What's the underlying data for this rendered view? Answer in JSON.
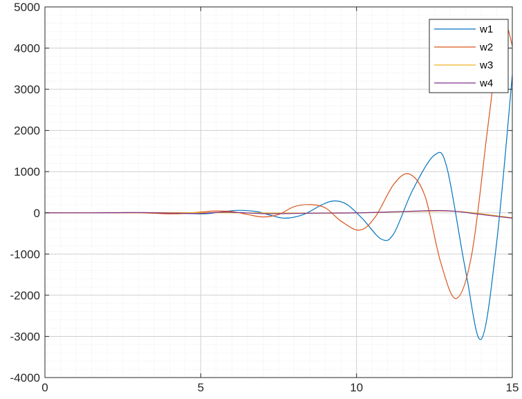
{
  "chart_data": {
    "type": "line",
    "title": "",
    "xlabel": "",
    "ylabel": "",
    "xlim": [
      0,
      15
    ],
    "ylim": [
      -4000,
      5000
    ],
    "x_ticks": [
      0,
      5,
      10,
      15
    ],
    "y_ticks": [
      -4000,
      -3000,
      -2000,
      -1000,
      0,
      1000,
      2000,
      3000,
      4000,
      5000
    ],
    "x_tick_labels": [
      "0",
      "5",
      "10",
      "15"
    ],
    "y_tick_labels": [
      "-4000",
      "-3000",
      "-2000",
      "-1000",
      "0",
      "1000",
      "2000",
      "3000",
      "4000",
      "5000"
    ],
    "grid": "major and minor, dotted",
    "legend_position": "top-right",
    "series": [
      {
        "name": "w1",
        "color": "#0072BD",
        "points": [
          [
            0,
            0
          ],
          [
            2,
            0
          ],
          [
            3,
            5
          ],
          [
            3.5,
            3
          ],
          [
            4,
            -5
          ],
          [
            4.5,
            -15
          ],
          [
            5,
            -25
          ],
          [
            5.3,
            -15
          ],
          [
            5.7,
            25
          ],
          [
            6.2,
            60
          ],
          [
            6.8,
            30
          ],
          [
            7.2,
            -50
          ],
          [
            7.7,
            -130
          ],
          [
            8.3,
            -40
          ],
          [
            8.9,
            200
          ],
          [
            9.3,
            290
          ],
          [
            9.7,
            200
          ],
          [
            10.2,
            -150
          ],
          [
            10.8,
            -640
          ],
          [
            11.2,
            -500
          ],
          [
            11.8,
            550
          ],
          [
            12.5,
            1400
          ],
          [
            12.9,
            1100
          ],
          [
            13.5,
            -1400
          ],
          [
            14.0,
            -3070
          ],
          [
            14.5,
            -700
          ],
          [
            15,
            3350
          ]
        ]
      },
      {
        "name": "w2",
        "color": "#D95319",
        "points": [
          [
            0,
            0
          ],
          [
            2,
            5
          ],
          [
            3,
            0
          ],
          [
            3.5,
            -10
          ],
          [
            4,
            -25
          ],
          [
            4.5,
            -15
          ],
          [
            5,
            20
          ],
          [
            5.5,
            45
          ],
          [
            6,
            30
          ],
          [
            6.5,
            -40
          ],
          [
            7,
            -100
          ],
          [
            7.5,
            -40
          ],
          [
            8,
            150
          ],
          [
            8.5,
            200
          ],
          [
            9,
            120
          ],
          [
            9.5,
            -200
          ],
          [
            10.1,
            -420
          ],
          [
            10.6,
            -100
          ],
          [
            11.2,
            700
          ],
          [
            11.7,
            940
          ],
          [
            12.2,
            400
          ],
          [
            12.7,
            -1200
          ],
          [
            13.2,
            -2080
          ],
          [
            13.7,
            -1000
          ],
          [
            14.2,
            2000
          ],
          [
            14.6,
            4350
          ],
          [
            14.8,
            4580
          ],
          [
            15,
            4050
          ]
        ]
      },
      {
        "name": "w3",
        "color": "#EDB120",
        "points": [
          [
            0,
            0
          ],
          [
            5,
            5
          ],
          [
            9,
            -10
          ],
          [
            11,
            15
          ],
          [
            12.5,
            45
          ],
          [
            13.5,
            20
          ],
          [
            15,
            -120
          ]
        ]
      },
      {
        "name": "w4",
        "color": "#7E2F8E",
        "points": [
          [
            0,
            0
          ],
          [
            2,
            3
          ],
          [
            3,
            8
          ],
          [
            4,
            -5
          ],
          [
            5,
            -15
          ],
          [
            5.8,
            20
          ],
          [
            7,
            -20
          ],
          [
            8,
            -15
          ],
          [
            9,
            -5
          ],
          [
            10,
            0
          ],
          [
            11,
            20
          ],
          [
            12,
            45
          ],
          [
            12.6,
            55
          ],
          [
            13.2,
            35
          ],
          [
            14,
            -40
          ],
          [
            15,
            -130
          ]
        ]
      }
    ]
  }
}
